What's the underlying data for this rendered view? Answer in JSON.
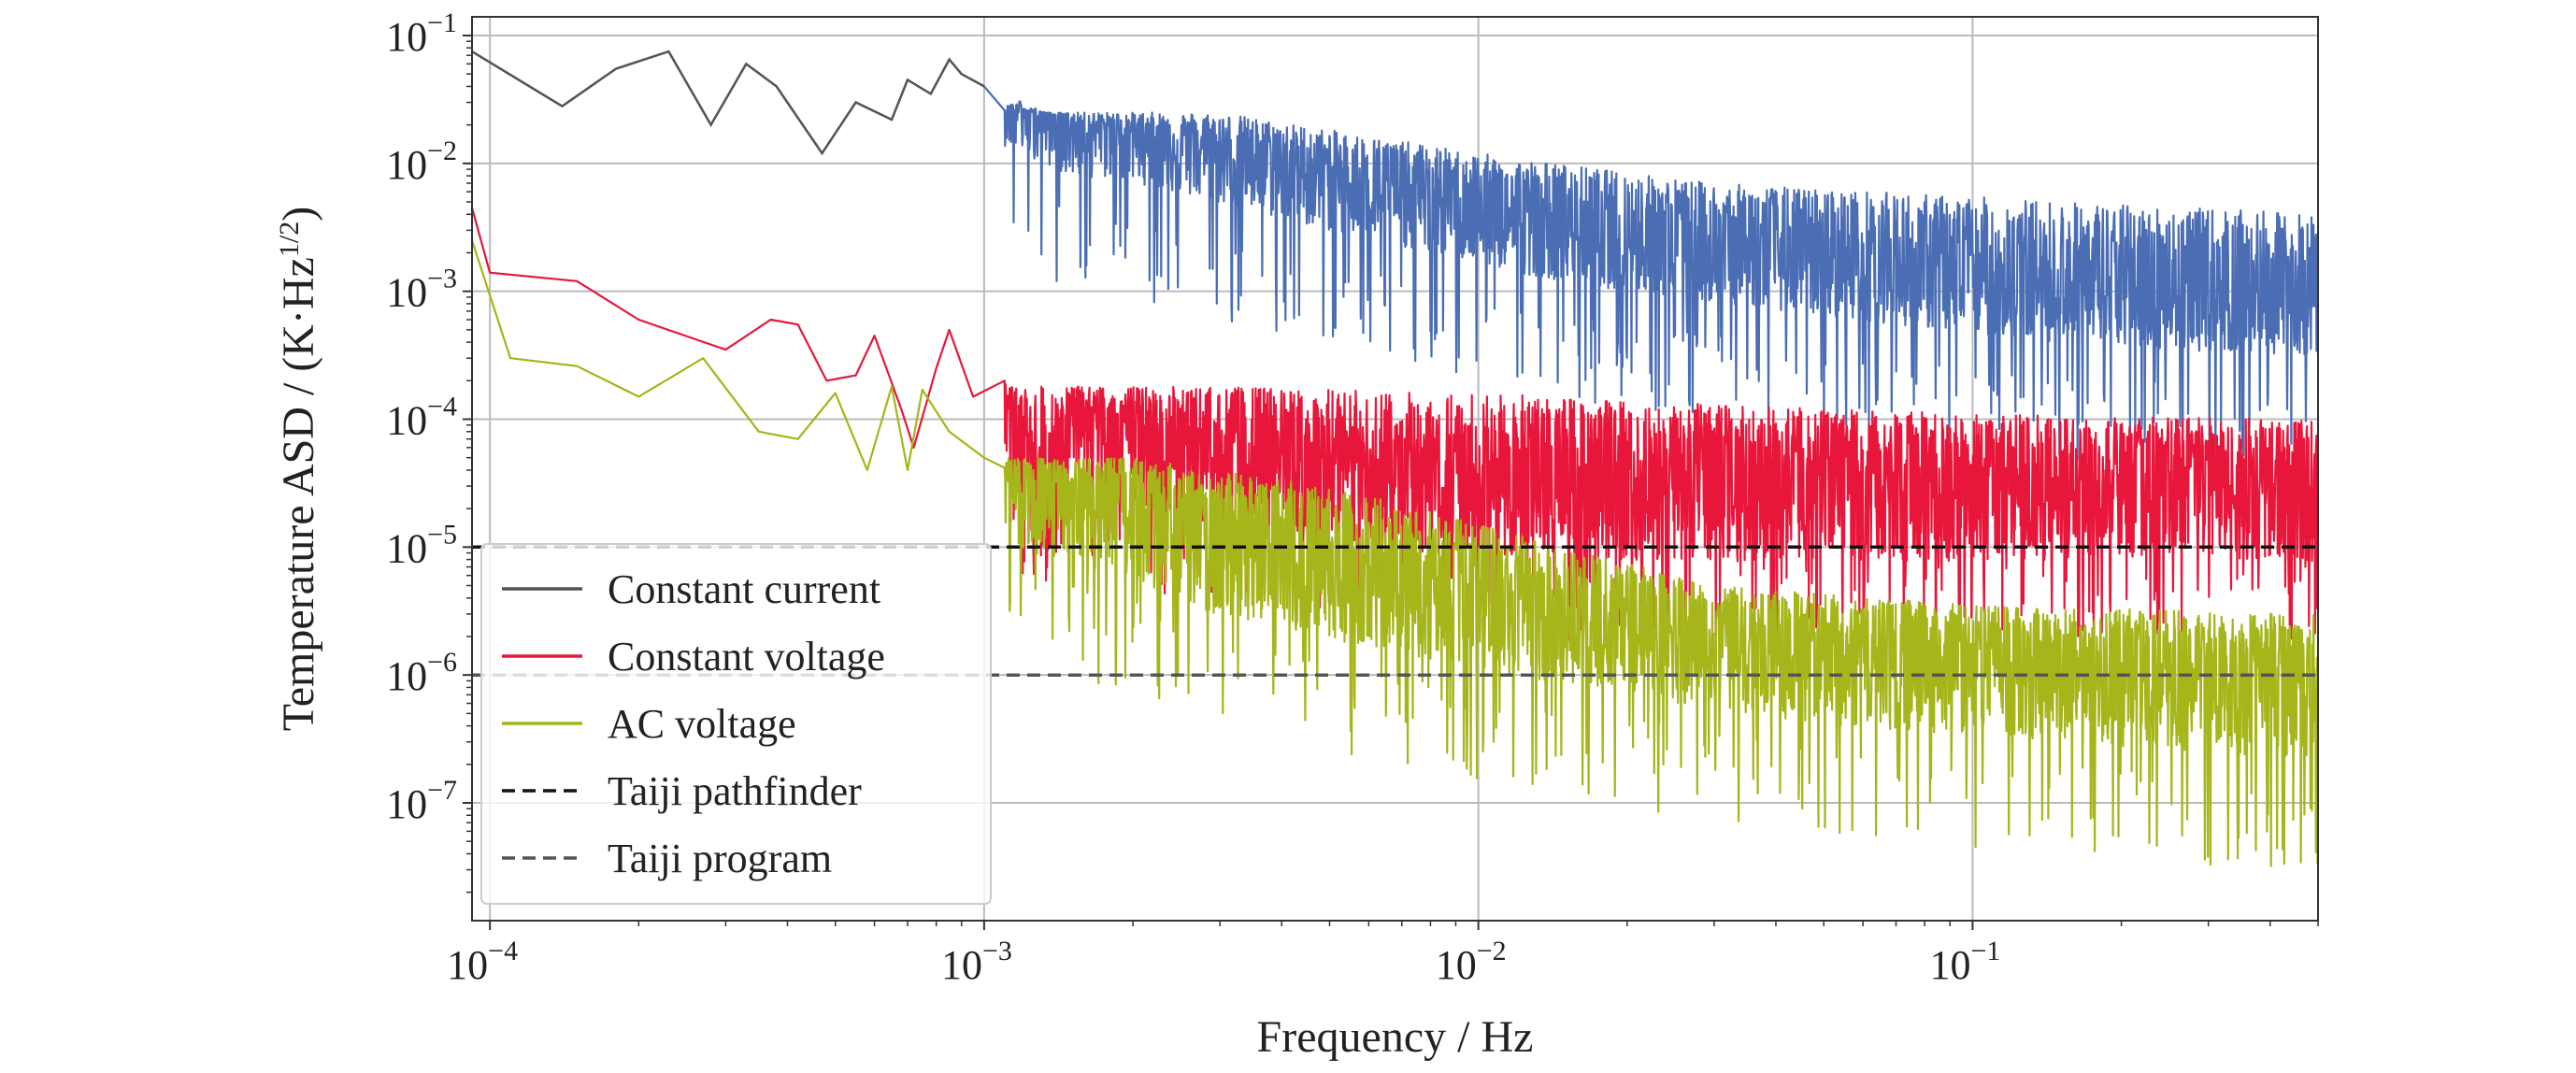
{
  "chart_data": {
    "type": "line",
    "title": "",
    "xlabel": "Frequency / Hz",
    "ylabel_prefix": "Temperature ASD / (K·Hz",
    "ylabel_sup": "1/2",
    "ylabel_suffix": ")",
    "x_scale": "log",
    "y_scale": "log",
    "xlim": [
      9.2e-05,
      0.5
    ],
    "ylim": [
      1.2e-08,
      0.14
    ],
    "grid": true,
    "legend_position": "lower-left",
    "x_ticks": [
      {
        "value": 0.0001,
        "base": "10",
        "exp": "−4"
      },
      {
        "value": 0.001,
        "base": "10",
        "exp": "−3"
      },
      {
        "value": 0.01,
        "base": "10",
        "exp": "−2"
      },
      {
        "value": 0.1,
        "base": "10",
        "exp": "−1"
      }
    ],
    "y_ticks": [
      {
        "value": 0.1,
        "base": "10",
        "exp": "−1"
      },
      {
        "value": 0.01,
        "base": "10",
        "exp": "−2"
      },
      {
        "value": 0.001,
        "base": "10",
        "exp": "−3"
      },
      {
        "value": 0.0001,
        "base": "10",
        "exp": "−4"
      },
      {
        "value": 1e-05,
        "base": "10",
        "exp": "−5"
      },
      {
        "value": 1e-06,
        "base": "10",
        "exp": "−6"
      },
      {
        "value": 1e-07,
        "base": "10",
        "exp": "−7"
      }
    ],
    "series": [
      {
        "name": "Constant current",
        "color": "#4a6db3",
        "color_low": "#555555",
        "style": "solid",
        "points": [
          [
            9.2e-05,
            0.075
          ],
          [
            0.00014,
            0.028
          ],
          [
            0.00018,
            0.055
          ],
          [
            0.00023,
            0.075
          ],
          [
            0.00028,
            0.02
          ],
          [
            0.00033,
            0.06
          ],
          [
            0.00038,
            0.04
          ],
          [
            0.00047,
            0.012
          ],
          [
            0.00055,
            0.03
          ],
          [
            0.00065,
            0.022
          ],
          [
            0.0007,
            0.045
          ],
          [
            0.00078,
            0.035
          ],
          [
            0.00085,
            0.065
          ],
          [
            0.0009,
            0.05
          ],
          [
            0.001,
            0.04
          ],
          [
            0.0012,
            0.03
          ],
          [
            0.0015,
            0.02
          ],
          [
            0.002,
            0.018
          ],
          [
            0.003,
            0.012
          ],
          [
            0.005,
            0.0075
          ],
          [
            0.008,
            0.005
          ],
          [
            0.012,
            0.0035
          ],
          [
            0.02,
            0.0025
          ],
          [
            0.04,
            0.0018
          ],
          [
            0.08,
            0.0013
          ],
          [
            0.15,
            0.001
          ],
          [
            0.3,
            0.00085
          ],
          [
            0.5,
            0.0008
          ]
        ],
        "noise_spread": 0.25,
        "spike_depth": 1.1,
        "envelope_top": [
          [
            0.003,
            0.025
          ],
          [
            0.01,
            0.012
          ],
          [
            0.03,
            0.007
          ],
          [
            0.1,
            0.0055
          ],
          [
            0.5,
            0.004
          ]
        ]
      },
      {
        "name": "Constant voltage",
        "color": "#e8163a",
        "style": "solid",
        "points": [
          [
            9.2e-05,
            0.0045
          ],
          [
            0.0001,
            0.0014
          ],
          [
            0.00015,
            0.0012
          ],
          [
            0.0002,
            0.0006
          ],
          [
            0.0003,
            0.00035
          ],
          [
            0.00037,
            0.0006
          ],
          [
            0.00042,
            0.00055
          ],
          [
            0.00048,
            0.0002
          ],
          [
            0.00055,
            0.00022
          ],
          [
            0.0006,
            0.00045
          ],
          [
            0.00068,
            0.00012
          ],
          [
            0.00072,
            6e-05
          ],
          [
            0.0008,
            0.00025
          ],
          [
            0.00085,
            0.0005
          ],
          [
            0.00095,
            0.00015
          ],
          [
            0.0011,
            0.0002
          ],
          [
            0.0013,
            3e-05
          ],
          [
            0.0015,
            0.0001
          ],
          [
            0.002,
            8e-05
          ],
          [
            0.003,
            5e-05
          ],
          [
            0.005,
            3.5e-05
          ],
          [
            0.01,
            3e-05
          ],
          [
            0.03,
            2.8e-05
          ],
          [
            0.1,
            2.8e-05
          ],
          [
            0.5,
            2.8e-05
          ]
        ],
        "noise_spread": 0.35,
        "spike_depth": 1.0,
        "envelope_top": [
          [
            0.003,
            0.00018
          ],
          [
            0.01,
            0.00016
          ],
          [
            0.03,
            0.00013
          ],
          [
            0.1,
            0.00011
          ],
          [
            0.5,
            0.0001
          ]
        ]
      },
      {
        "name": "AC voltage",
        "color": "#a5b51a",
        "style": "solid",
        "points": [
          [
            9.2e-05,
            0.0025
          ],
          [
            0.00011,
            0.0003
          ],
          [
            0.00015,
            0.00026
          ],
          [
            0.0002,
            0.00015
          ],
          [
            0.00027,
            0.0003
          ],
          [
            0.00035,
            8e-05
          ],
          [
            0.00042,
            7e-05
          ],
          [
            0.0005,
            0.00016
          ],
          [
            0.00058,
            4e-05
          ],
          [
            0.00065,
            0.00018
          ],
          [
            0.0007,
            4e-05
          ],
          [
            0.00075,
            0.00017
          ],
          [
            0.00085,
            8e-05
          ],
          [
            0.001,
            5e-05
          ],
          [
            0.0013,
            3e-05
          ],
          [
            0.002,
            2e-05
          ],
          [
            0.003,
            1e-05
          ],
          [
            0.006,
            6e-06
          ],
          [
            0.01,
            4e-06
          ],
          [
            0.02,
            2.5e-06
          ],
          [
            0.05,
            1.5e-06
          ],
          [
            0.1,
            1.2e-06
          ],
          [
            0.3,
            9e-07
          ],
          [
            0.5,
            8e-07
          ]
        ],
        "noise_spread": 0.35,
        "spike_depth": 1.2,
        "envelope_top": [
          [
            0.002,
            5e-05
          ],
          [
            0.005,
            3e-05
          ],
          [
            0.01,
            1.5e-05
          ],
          [
            0.03,
            5e-06
          ],
          [
            0.1,
            3.5e-06
          ],
          [
            0.5,
            3e-06
          ]
        ]
      },
      {
        "name": "Taiji pathfinder",
        "color": "#111111",
        "style": "dashed",
        "points": [
          [
            9.2e-05,
            1e-05
          ],
          [
            0.5,
            1e-05
          ]
        ]
      },
      {
        "name": "Taiji program",
        "color": "#555555",
        "style": "dashed",
        "points": [
          [
            9.2e-05,
            1e-06
          ],
          [
            0.5,
            1e-06
          ]
        ]
      }
    ]
  }
}
